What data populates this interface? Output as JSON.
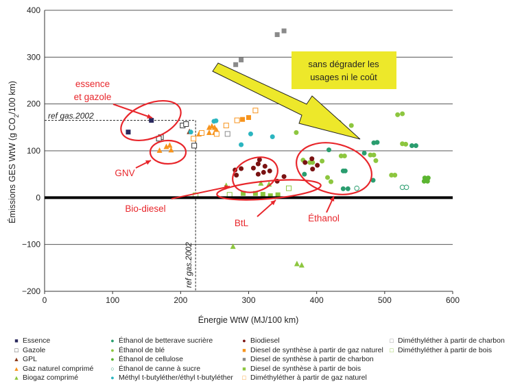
{
  "chart_data": {
    "type": "scatter",
    "xlabel": "Énergie WtW (MJ/100 km)",
    "ylabel": "Émissions GES WtW (g CO2/100 km)",
    "xlim": [
      0,
      600
    ],
    "ylim": [
      -200,
      400
    ],
    "xticks": [
      "0",
      "100",
      "200",
      "300",
      "400",
      "500",
      "600"
    ],
    "yticks": [
      "−200",
      "−100",
      "0",
      "100",
      "200",
      "300",
      "400"
    ],
    "grid": "horizontal",
    "legend_position": "bottom",
    "series": [
      {
        "name": "Essence",
        "marker": "square",
        "color": "#2b2a5e",
        "points": [
          [
            157,
            165
          ],
          [
            123,
            140
          ]
        ]
      },
      {
        "name": "Gazole",
        "marker": "square-open",
        "color": "#333333",
        "points": [
          [
            203,
            154
          ],
          [
            208,
            157
          ],
          [
            171,
            129
          ],
          [
            168,
            126
          ],
          [
            220,
            111
          ]
        ]
      },
      {
        "name": "GPL",
        "marker": "triangle",
        "color": "#8b3a1a",
        "points": [
          [
            213,
            140
          ]
        ]
      },
      {
        "name": "Gaz naturel comprimé",
        "marker": "triangle",
        "color": "#f7941d",
        "points": [
          [
            169,
            100
          ],
          [
            179,
            108
          ],
          [
            184,
            111
          ],
          [
            186,
            101
          ],
          [
            227,
            135
          ],
          [
            242,
            149
          ],
          [
            246,
            152
          ],
          [
            250,
            149
          ],
          [
            253,
            143
          ],
          [
            250,
            138
          ],
          [
            242,
            138
          ]
        ]
      },
      {
        "name": "Biogaz comprimé",
        "marker": "triangle",
        "color": "#8dc63f",
        "points": [
          [
            277,
            -105
          ],
          [
            371,
            -142
          ],
          [
            378,
            -145
          ],
          [
            267,
            25
          ],
          [
            318,
            30
          ],
          [
            330,
            28
          ]
        ]
      },
      {
        "name": "Éthanol de betterave sucrière",
        "marker": "circle",
        "color": "#2a9d6f",
        "points": [
          [
            484,
            117
          ],
          [
            489,
            118
          ],
          [
            540,
            111
          ],
          [
            546,
            111
          ],
          [
            418,
            102
          ],
          [
            470,
            95
          ],
          [
            439,
            57
          ],
          [
            442,
            57
          ],
          [
            382,
            50
          ],
          [
            439,
            19
          ],
          [
            446,
            19
          ],
          [
            483,
            37
          ]
        ]
      },
      {
        "name": "Éthanol de blé",
        "marker": "circle",
        "color": "#8dc63f",
        "points": [
          [
            519,
            177
          ],
          [
            526,
            179
          ],
          [
            526,
            115
          ],
          [
            531,
            114
          ],
          [
            436,
            89
          ],
          [
            441,
            89
          ],
          [
            479,
            91
          ],
          [
            484,
            91
          ],
          [
            408,
            78
          ],
          [
            416,
            43
          ],
          [
            421,
            34
          ],
          [
            510,
            48
          ],
          [
            515,
            48
          ],
          [
            370,
            139
          ],
          [
            451,
            154
          ],
          [
            433,
            161
          ],
          [
            380,
            80
          ],
          [
            390,
            75
          ],
          [
            394,
            75
          ],
          [
            487,
            79
          ]
        ]
      },
      {
        "name": "Éthanol de cellulose",
        "marker": "circle",
        "color": "#5bb531",
        "points": [
          [
            559,
            42
          ],
          [
            564,
            42
          ],
          [
            558,
            35
          ],
          [
            563,
            35
          ]
        ]
      },
      {
        "name": "Éthanol de canne à sucre",
        "marker": "circle-open",
        "color": "#2a9d6f",
        "points": [
          [
            526,
            22
          ],
          [
            532,
            22
          ],
          [
            459,
            20
          ]
        ]
      },
      {
        "name": "Méthyl t-butyléther/éthyl t-butyléther",
        "marker": "circle",
        "color": "#2bb5c0",
        "points": [
          [
            249,
            163
          ],
          [
            252,
            164
          ],
          [
            215,
            140
          ],
          [
            303,
            136
          ],
          [
            335,
            130
          ],
          [
            289,
            113
          ]
        ]
      },
      {
        "name": "Biodiesel",
        "marker": "circle",
        "color": "#7a1212",
        "points": [
          [
            280,
            59
          ],
          [
            289,
            62
          ],
          [
            282,
            48
          ],
          [
            307,
            63
          ],
          [
            314,
            72
          ],
          [
            316,
            81
          ],
          [
            324,
            67
          ],
          [
            322,
            54
          ],
          [
            314,
            50
          ],
          [
            331,
            57
          ],
          [
            352,
            45
          ],
          [
            342,
            35
          ],
          [
            393,
            83
          ],
          [
            383,
            75
          ],
          [
            394,
            61
          ],
          [
            401,
            69
          ]
        ]
      },
      {
        "name": "Diesel de synthèse à partir de gaz naturel",
        "marker": "square",
        "color": "#f7941d",
        "points": [
          [
            291,
            167
          ],
          [
            300,
            171
          ]
        ]
      },
      {
        "name": "Diesel de synthèse à partir de charbon",
        "marker": "square",
        "color": "#8a8a8a",
        "points": [
          [
            342,
            348
          ],
          [
            352,
            356
          ],
          [
            281,
            284
          ],
          [
            289,
            294
          ]
        ]
      },
      {
        "name": "Diesel de synthèse à partir de bois",
        "marker": "square",
        "color": "#8dc63f",
        "points": [
          [
            292,
            9
          ],
          [
            310,
            9
          ],
          [
            321,
            7
          ],
          [
            332,
            4
          ],
          [
            343,
            6
          ]
        ]
      },
      {
        "name": "Diméthyléther à partir de gaz naturel",
        "marker": "square-open",
        "color": "#f7941d",
        "points": [
          [
            310,
            186
          ],
          [
            283,
            165
          ],
          [
            267,
            154
          ],
          [
            253,
            136
          ],
          [
            219,
            126
          ],
          [
            231,
            138
          ]
        ]
      },
      {
        "name": "Diméthyléther à partir de charbon",
        "marker": "square-open",
        "color": "#8a8a8a",
        "points": [
          [
            269,
            136
          ]
        ]
      },
      {
        "name": "Diméthyléther à partir de bois",
        "marker": "square-open",
        "color": "#8dc63f",
        "points": [
          [
            272,
            6
          ],
          [
            359,
            20
          ],
          [
            222,
            5
          ]
        ]
      }
    ],
    "annotations": {
      "essence": "essence et gazole",
      "gnv": "GNV",
      "biodiesel": "Bio-diesel",
      "btl": "BtL",
      "ethanol": "Éthanol",
      "ref_h": "ref gas.2002",
      "ref_v": "ref gas.2002",
      "box_line1": "sans dégrader les",
      "box_line2": "usages ni le coût"
    },
    "reference": {
      "energy": 222,
      "emissions": 165
    },
    "colors": {
      "annotation": "#e8262b",
      "callout_box": "#ede82a",
      "arrow": "#ede82a"
    }
  }
}
